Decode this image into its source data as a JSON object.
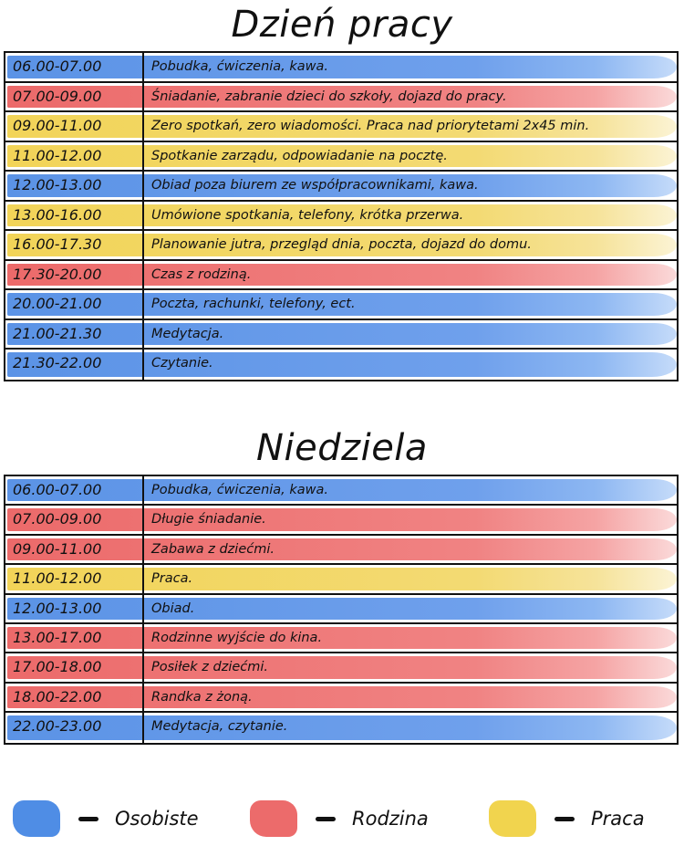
{
  "workday": {
    "title": "Dzień pracy",
    "rows": [
      {
        "time": "06.00-07.00",
        "activity": "Pobudka, ćwiczenia, kawa.",
        "category": "blue"
      },
      {
        "time": "07.00-09.00",
        "activity": "Śniadanie, zabranie dzieci do szkoły, dojazd do pracy.",
        "category": "red"
      },
      {
        "time": "09.00-11.00",
        "activity": "Zero spotkań, zero wiadomości. Praca nad priorytetami 2x45 min.",
        "category": "yellow"
      },
      {
        "time": "11.00-12.00",
        "activity": "Spotkanie zarządu, odpowiadanie na pocztę.",
        "category": "yellow"
      },
      {
        "time": "12.00-13.00",
        "activity": "Obiad poza biurem ze współpracownikami, kawa.",
        "category": "blue"
      },
      {
        "time": "13.00-16.00",
        "activity": "Umówione spotkania, telefony, krótka przerwa.",
        "category": "yellow"
      },
      {
        "time": "16.00-17.30",
        "activity": "Planowanie jutra, przegląd dnia, poczta, dojazd do domu.",
        "category": "yellow"
      },
      {
        "time": "17.30-20.00",
        "activity": "Czas z rodziną.",
        "category": "red"
      },
      {
        "time": "20.00-21.00",
        "activity": "Poczta, rachunki, telefony, ect.",
        "category": "blue"
      },
      {
        "time": "21.00-21.30",
        "activity": "Medytacja.",
        "category": "blue"
      },
      {
        "time": "21.30-22.00",
        "activity": "Czytanie.",
        "category": "blue"
      }
    ]
  },
  "sunday": {
    "title": "Niedziela",
    "rows": [
      {
        "time": "06.00-07.00",
        "activity": "Pobudka, ćwiczenia, kawa.",
        "category": "blue"
      },
      {
        "time": "07.00-09.00",
        "activity": "Długie śniadanie.",
        "category": "red"
      },
      {
        "time": "09.00-11.00",
        "activity": "Zabawa z dziećmi.",
        "category": "red"
      },
      {
        "time": "11.00-12.00",
        "activity": "Praca.",
        "category": "yellow"
      },
      {
        "time": "12.00-13.00",
        "activity": "Obiad.",
        "category": "blue"
      },
      {
        "time": "13.00-17.00",
        "activity": "Rodzinne wyjście do kina.",
        "category": "red"
      },
      {
        "time": "17.00-18.00",
        "activity": "Posiłek z dziećmi.",
        "category": "red"
      },
      {
        "time": "18.00-22.00",
        "activity": "Randka z żoną.",
        "category": "red"
      },
      {
        "time": "22.00-23.00",
        "activity": "Medytacja, czytanie.",
        "category": "blue"
      }
    ]
  },
  "legend": {
    "personal": {
      "label": "Osobiste",
      "color": "#4f8de5"
    },
    "family": {
      "label": "Rodzina",
      "color": "#ec6b6b"
    },
    "work": {
      "label": "Praca",
      "color": "#f1d44e"
    }
  }
}
